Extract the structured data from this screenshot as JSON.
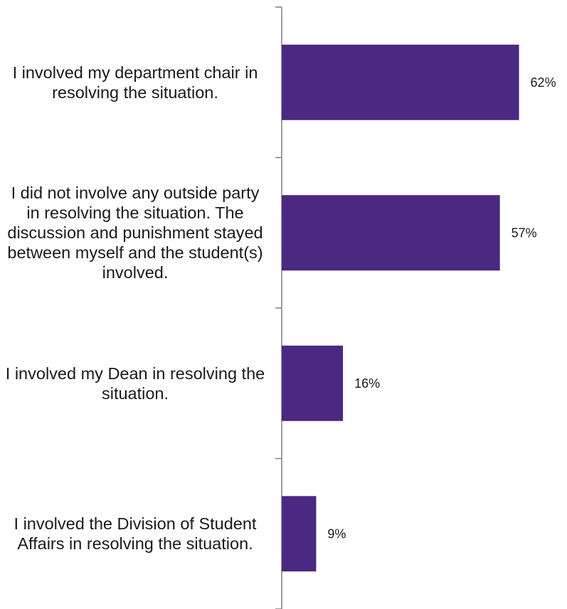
{
  "chart_data": {
    "type": "bar",
    "orientation": "horizontal",
    "categories": [
      "I involved my department chair in resolving the situation.",
      "I did not involve any outside party in resolving the situation.  The discussion and punishment stayed between myself and the student(s) involved.",
      "I involved my Dean in resolving the situation.",
      "I involved the Division of Student Affairs in resolving the situation."
    ],
    "values": [
      62,
      57,
      16,
      9
    ],
    "value_labels": [
      "62%",
      "57%",
      "16%",
      "9%"
    ],
    "xlim": [
      0,
      70
    ],
    "grid": false,
    "legend": "none",
    "bar_color": "#4b2882",
    "axis_color": "#808080"
  }
}
